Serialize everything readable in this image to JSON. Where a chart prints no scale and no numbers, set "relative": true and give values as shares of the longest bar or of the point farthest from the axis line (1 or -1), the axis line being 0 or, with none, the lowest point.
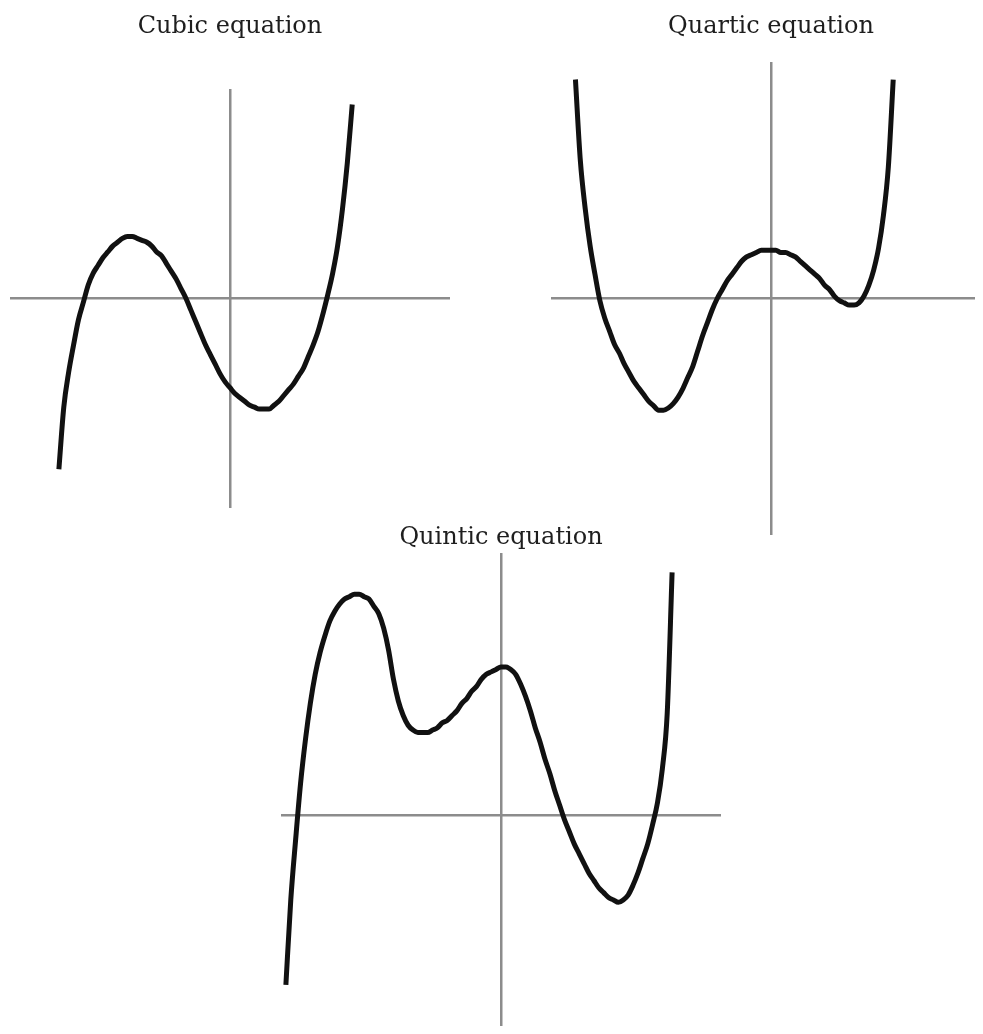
{
  "chart_data": [
    {
      "type": "line",
      "title": "Cubic equation",
      "relative": true,
      "tick_labels": false,
      "color": "#111111",
      "categories": [
        null,
        null,
        null,
        null,
        null,
        null,
        null,
        null,
        null,
        null,
        null,
        null,
        null,
        null,
        null,
        null,
        null,
        null,
        null,
        null,
        null,
        null,
        null,
        null,
        null,
        null,
        null,
        null,
        null,
        null,
        null,
        null,
        null,
        null,
        null,
        null,
        null,
        null,
        null,
        null,
        null,
        null,
        null,
        null,
        null,
        null,
        null,
        null,
        null,
        null,
        null,
        null,
        null,
        null,
        null,
        null,
        null,
        null,
        null,
        null,
        null,
        null,
        null,
        null,
        null,
        null,
        null,
        null,
        null,
        null,
        null,
        null,
        null,
        null,
        null,
        null,
        null,
        null,
        null,
        null,
        null,
        null,
        null,
        null,
        null,
        null,
        null,
        null,
        null,
        null,
        null
      ],
      "values": [
        null,
        null,
        null,
        null,
        null,
        null,
        null,
        null,
        null,
        null,
        -0.88,
        -0.56,
        -0.38,
        -0.24,
        -0.11,
        -0.02,
        0.07,
        0.13,
        0.17,
        0.21,
        0.24,
        0.27,
        0.29,
        0.31,
        0.32,
        0.32,
        0.31,
        0.3,
        0.29,
        0.27,
        0.24,
        0.22,
        0.18,
        0.14,
        0.1,
        0.05,
        0.0,
        -0.06,
        -0.12,
        -0.18,
        -0.24,
        -0.29,
        -0.34,
        -0.39,
        -0.43,
        -0.46,
        -0.49,
        -0.51,
        -0.53,
        -0.55,
        -0.56,
        -0.57,
        -0.57,
        -0.57,
        -0.55,
        -0.53,
        -0.5,
        -0.47,
        -0.44,
        -0.4,
        -0.36,
        -0.3,
        -0.24,
        -0.17,
        -0.08,
        0.02,
        0.13,
        0.27,
        0.46,
        0.7,
        1,
        null,
        null,
        null,
        null,
        null,
        null,
        null,
        null,
        null,
        null,
        null,
        null,
        null,
        null,
        null,
        null,
        null,
        null,
        null,
        null
      ]
    },
    {
      "type": "line",
      "title": "Quartic equation",
      "relative": true,
      "tick_labels": false,
      "color": "#111111",
      "categories": [
        null,
        null,
        null,
        null,
        null,
        null,
        null,
        null,
        null,
        null,
        null,
        null,
        null,
        null,
        null,
        null,
        null,
        null,
        null,
        null,
        null,
        null,
        null,
        null,
        null,
        null,
        null,
        null,
        null,
        null,
        null,
        null,
        null,
        null,
        null,
        null,
        null,
        null,
        null,
        null,
        null,
        null,
        null,
        null,
        null,
        null,
        null,
        null,
        null,
        null,
        null,
        null,
        null,
        null,
        null,
        null,
        null,
        null,
        null,
        null,
        null,
        null,
        null,
        null,
        null,
        null,
        null,
        null,
        null,
        null,
        null,
        null,
        null,
        null,
        null,
        null,
        null,
        null,
        null,
        null,
        null,
        null,
        null,
        null,
        null,
        null,
        null,
        null,
        null,
        null,
        null
      ],
      "values": [
        null,
        null,
        null,
        null,
        null,
        1,
        0.63,
        0.41,
        0.24,
        0.11,
        -0.01,
        -0.09,
        -0.15,
        -0.21,
        -0.25,
        -0.3,
        -0.34,
        -0.38,
        -0.41,
        -0.44,
        -0.47,
        -0.49,
        -0.51,
        -0.51,
        -0.5,
        -0.48,
        -0.45,
        -0.41,
        -0.36,
        -0.31,
        -0.24,
        -0.17,
        -0.11,
        -0.05,
        0.0,
        0.04,
        0.08,
        0.11,
        0.14,
        0.17,
        0.19,
        0.2,
        0.21,
        0.22,
        0.22,
        0.22,
        0.22,
        0.21,
        0.21,
        0.2,
        0.19,
        0.17,
        0.15,
        0.13,
        0.11,
        0.09,
        0.06,
        0.04,
        0.01,
        -0.01,
        -0.02,
        -0.03,
        -0.03,
        -0.02,
        0.01,
        0.06,
        0.13,
        0.23,
        0.38,
        0.6,
        1,
        null,
        null,
        null,
        null,
        null,
        null,
        null,
        null,
        null,
        null,
        null,
        null,
        null,
        null,
        null,
        null,
        null,
        null,
        null,
        null
      ]
    },
    {
      "type": "line",
      "title": "Quintic equation",
      "relative": true,
      "tick_labels": false,
      "color": "#111111",
      "categories": [
        null,
        null,
        null,
        null,
        null,
        null,
        null,
        null,
        null,
        null,
        null,
        null,
        null,
        null,
        null,
        null,
        null,
        null,
        null,
        null,
        null,
        null,
        null,
        null,
        null,
        null,
        null,
        null,
        null,
        null,
        null,
        null,
        null,
        null,
        null,
        null,
        null,
        null,
        null,
        null,
        null,
        null,
        null,
        null,
        null,
        null,
        null,
        null,
        null,
        null,
        null,
        null,
        null,
        null,
        null,
        null,
        null,
        null,
        null,
        null,
        null,
        null,
        null,
        null,
        null,
        null,
        null,
        null,
        null,
        null,
        null,
        null,
        null,
        null,
        null,
        null,
        null,
        null,
        null,
        null,
        null,
        null,
        null,
        null,
        null,
        null,
        null,
        null,
        null,
        null,
        null
      ],
      "values": [
        null,
        -0.7,
        -0.35,
        -0.1,
        0.13,
        0.31,
        0.46,
        0.58,
        0.67,
        0.74,
        0.8,
        0.84,
        0.87,
        0.89,
        0.9,
        0.91,
        0.91,
        0.9,
        0.89,
        0.86,
        0.83,
        0.77,
        0.68,
        0.56,
        0.47,
        0.41,
        0.37,
        0.35,
        0.34,
        0.34,
        0.34,
        0.35,
        0.36,
        0.38,
        0.39,
        0.41,
        0.43,
        0.46,
        0.48,
        0.51,
        0.53,
        0.56,
        0.58,
        0.59,
        0.6,
        0.61,
        0.61,
        0.6,
        0.58,
        0.54,
        0.49,
        0.43,
        0.36,
        0.3,
        0.23,
        0.17,
        0.1,
        0.04,
        -0.02,
        -0.07,
        -0.12,
        -0.16,
        -0.2,
        -0.24,
        -0.27,
        -0.3,
        -0.32,
        -0.34,
        -0.35,
        -0.36,
        -0.35,
        -0.33,
        -0.29,
        -0.24,
        -0.18,
        -0.12,
        -0.04,
        0.05,
        0.19,
        0.42,
        1,
        null,
        null,
        null,
        null,
        null,
        null,
        null,
        null,
        null,
        null
      ]
    }
  ]
}
